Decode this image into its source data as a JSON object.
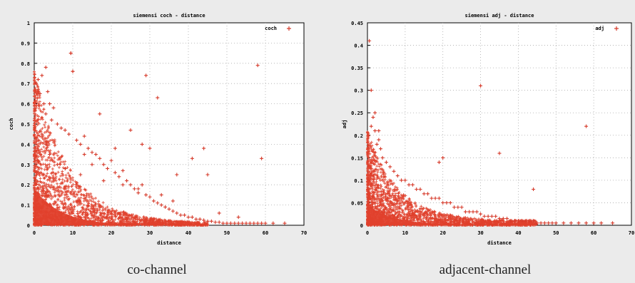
{
  "captions": {
    "left": "co-channel",
    "right": "adjacent-channel"
  },
  "colors": {
    "marker": "#d63a2a",
    "dense": "#e0402c",
    "axis": "#000000",
    "grid": "#aaaaaa",
    "plot_bg": "#ffffff",
    "page_bg": "#ebebeb"
  },
  "chart_data": [
    {
      "type": "scatter",
      "title": "siemensi coch - distance",
      "xlabel": "distance",
      "ylabel": "coch",
      "legend": {
        "label": "coch",
        "position": "top-right"
      },
      "xlim": [
        0,
        70
      ],
      "ylim": [
        0,
        1
      ],
      "xticks": [
        0,
        10,
        20,
        30,
        40,
        50,
        60,
        70
      ],
      "yticks": [
        0,
        0.1,
        0.2,
        0.3,
        0.4,
        0.5,
        0.6,
        0.7,
        0.8,
        0.9,
        1
      ],
      "xtick_labels": [
        "0",
        "10",
        "20",
        "30",
        "40",
        "50",
        "60",
        "70"
      ],
      "ytick_labels": [
        "0",
        "0.1",
        "0.2",
        "0.3",
        "0.4",
        "0.5",
        "0.6",
        "0.7",
        "0.8",
        "0.9",
        "1"
      ],
      "grid": true,
      "series": [
        {
          "x": [
            0.5,
            1,
            1.5,
            2,
            2.5,
            3,
            3,
            3.5,
            4,
            4.5,
            5,
            6,
            7,
            8,
            9,
            9.5,
            10,
            11,
            12,
            13,
            14,
            15,
            16,
            17,
            18,
            19,
            20,
            21,
            22,
            23,
            24,
            25,
            26,
            27,
            28,
            29,
            30,
            31,
            32,
            33,
            34,
            35,
            36,
            37,
            38,
            39,
            40,
            41,
            42,
            43,
            44,
            45,
            46,
            47,
            48,
            49,
            50,
            51,
            52,
            53,
            54,
            55,
            56,
            57,
            58,
            59,
            60,
            62,
            65,
            9.5,
            10,
            25,
            29,
            32,
            21,
            17,
            28,
            30,
            44,
            58,
            59,
            41,
            37,
            15,
            13,
            1,
            2,
            3,
            4,
            6,
            8,
            12,
            18,
            23,
            27,
            33,
            36,
            45,
            48,
            53
          ],
          "y": [
            0.7,
            0.72,
            0.65,
            0.74,
            0.6,
            0.78,
            0.55,
            0.66,
            0.6,
            0.52,
            0.58,
            0.5,
            0.48,
            0.47,
            0.45,
            0.85,
            0.76,
            0.42,
            0.4,
            0.44,
            0.38,
            0.36,
            0.35,
            0.33,
            0.3,
            0.28,
            0.32,
            0.26,
            0.24,
            0.27,
            0.22,
            0.2,
            0.18,
            0.16,
            0.2,
            0.15,
            0.14,
            0.12,
            0.11,
            0.1,
            0.09,
            0.08,
            0.07,
            0.06,
            0.05,
            0.05,
            0.04,
            0.04,
            0.03,
            0.03,
            0.025,
            0.02,
            0.02,
            0.015,
            0.015,
            0.01,
            0.01,
            0.01,
            0.01,
            0.01,
            0.01,
            0.01,
            0.01,
            0.01,
            0.01,
            0.01,
            0.01,
            0.01,
            0.01,
            0.85,
            0.76,
            0.47,
            0.74,
            0.63,
            0.38,
            0.55,
            0.4,
            0.38,
            0.38,
            0.79,
            0.33,
            0.33,
            0.25,
            0.3,
            0.35,
            0.42,
            0.45,
            0.4,
            0.35,
            0.3,
            0.28,
            0.25,
            0.22,
            0.2,
            0.18,
            0.15,
            0.12,
            0.25,
            0.06,
            0.04
          ]
        }
      ]
    },
    {
      "type": "scatter",
      "title": "siemensi adj - distance",
      "xlabel": "distance",
      "ylabel": "adj",
      "legend": {
        "label": "adj",
        "position": "top-right"
      },
      "xlim": [
        0,
        70
      ],
      "ylim": [
        0,
        0.45
      ],
      "xticks": [
        0,
        10,
        20,
        30,
        40,
        50,
        60,
        70
      ],
      "yticks": [
        0,
        0.05,
        0.1,
        0.15,
        0.2,
        0.25,
        0.3,
        0.35,
        0.4,
        0.45
      ],
      "xtick_labels": [
        "0",
        "10",
        "20",
        "30",
        "40",
        "50",
        "60",
        "70"
      ],
      "ytick_labels": [
        "0",
        "0.05",
        "0.1",
        "0.15",
        "0.2",
        "0.25",
        "0.3",
        "0.35",
        "0.4",
        "0.45"
      ],
      "grid": true,
      "series": [
        {
          "x": [
            0.5,
            1,
            1,
            1.5,
            2,
            2.5,
            3,
            3.5,
            4,
            5,
            6,
            7,
            8,
            9,
            10,
            11,
            12,
            13,
            14,
            15,
            16,
            17,
            18,
            19,
            20,
            21,
            22,
            23,
            24,
            25,
            26,
            27,
            28,
            29,
            30,
            31,
            32,
            33,
            34,
            35,
            36,
            37,
            38,
            39,
            40,
            41,
            42,
            43,
            44,
            45,
            46,
            47,
            48,
            49,
            50,
            52,
            54,
            56,
            58,
            60,
            62,
            65,
            30,
            35,
            44,
            58,
            19,
            20,
            2,
            3
          ],
          "y": [
            0.41,
            0.3,
            0.22,
            0.24,
            0.21,
            0.18,
            0.19,
            0.17,
            0.15,
            0.14,
            0.13,
            0.12,
            0.11,
            0.1,
            0.1,
            0.09,
            0.09,
            0.08,
            0.08,
            0.07,
            0.07,
            0.06,
            0.06,
            0.06,
            0.05,
            0.05,
            0.05,
            0.04,
            0.04,
            0.04,
            0.03,
            0.03,
            0.03,
            0.03,
            0.025,
            0.02,
            0.02,
            0.02,
            0.02,
            0.015,
            0.015,
            0.015,
            0.01,
            0.01,
            0.01,
            0.01,
            0.01,
            0.01,
            0.01,
            0.005,
            0.005,
            0.005,
            0.005,
            0.005,
            0.005,
            0.005,
            0.005,
            0.005,
            0.005,
            0.005,
            0.005,
            0.005,
            0.31,
            0.16,
            0.08,
            0.22,
            0.14,
            0.15,
            0.25,
            0.21
          ]
        }
      ]
    }
  ]
}
